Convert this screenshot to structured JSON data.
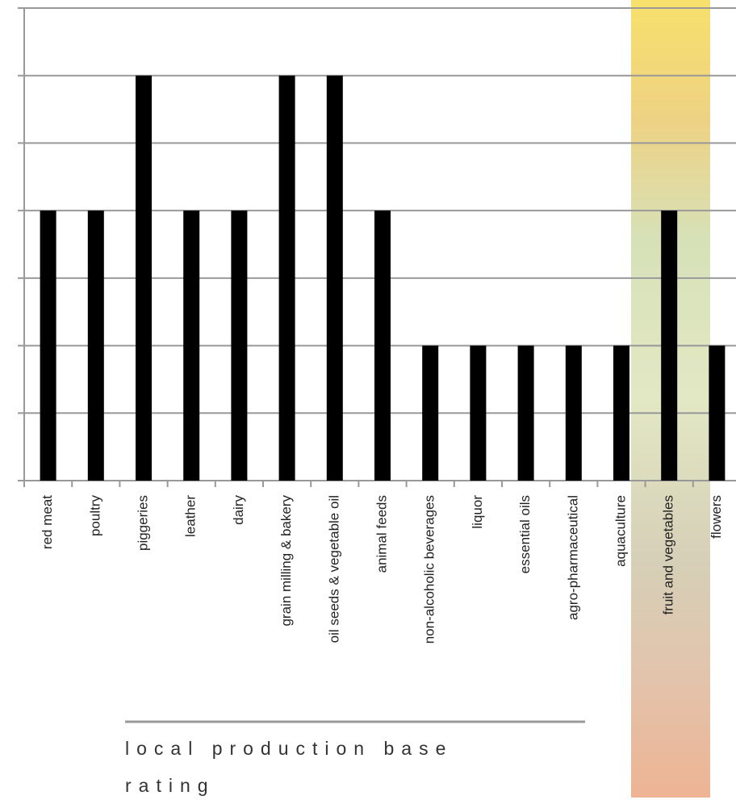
{
  "chart_data": {
    "type": "bar",
    "title": "local production base rating",
    "categories": [
      "red meat",
      "poultry",
      "piggeries",
      "leather",
      "dairy",
      "grain milling & bakery",
      "oil seeds & vegetable oil",
      "animal feeds",
      "non-alcoholic beverages",
      "liquor",
      "essential oils",
      "agro-pharmaceutical",
      "aquaculture",
      "fruit and vegetables",
      "flowers"
    ],
    "values": [
      4,
      4,
      6,
      4,
      4,
      6,
      6,
      4,
      2,
      2,
      2,
      2,
      2,
      4,
      2
    ],
    "color": "#000000",
    "ylim": [
      0,
      7
    ],
    "yticks": [
      0,
      1,
      2,
      3,
      4,
      5,
      6,
      7
    ],
    "grid": true
  }
}
